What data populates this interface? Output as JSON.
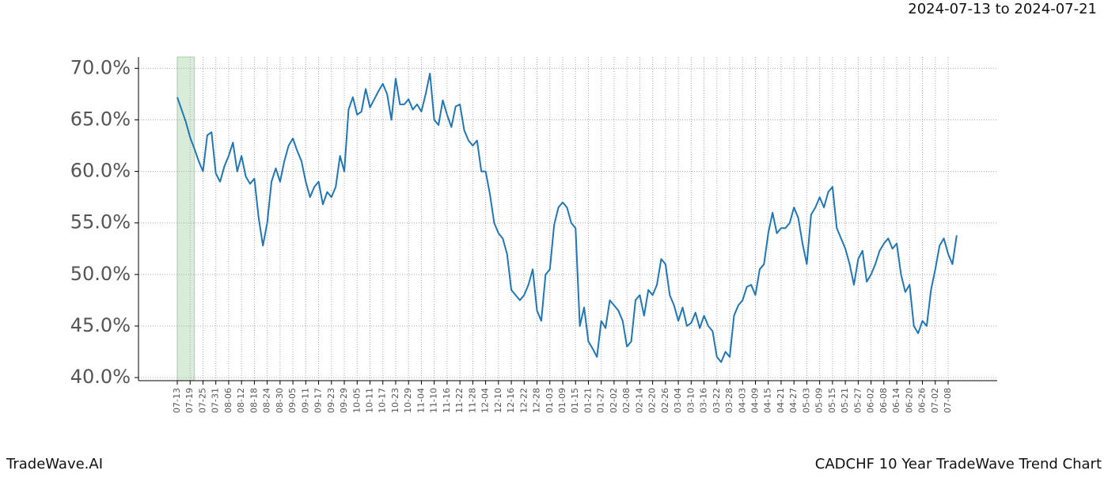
{
  "chart_data": {
    "type": "line",
    "title": "2024-07-13 to 2024-07-21",
    "footer_left": "TradeWave.AI",
    "footer_right": "CADCHF 10 Year TradeWave Trend Chart",
    "x": [
      "07-13",
      null,
      null,
      "07-19",
      null,
      null,
      "07-25",
      null,
      null,
      "07-31",
      null,
      null,
      "08-06",
      null,
      null,
      "08-12",
      null,
      null,
      "08-18",
      null,
      null,
      "08-24",
      null,
      null,
      "08-30",
      null,
      null,
      "09-05",
      null,
      null,
      "09-11",
      null,
      null,
      "09-17",
      null,
      null,
      "09-23",
      null,
      null,
      "09-29",
      null,
      null,
      "10-05",
      null,
      null,
      "10-11",
      null,
      null,
      "10-17",
      null,
      null,
      "10-23",
      null,
      null,
      "10-29",
      null,
      null,
      "11-04",
      null,
      null,
      "11-10",
      null,
      null,
      "11-16",
      null,
      null,
      "11-22",
      null,
      null,
      "11-28",
      null,
      null,
      "12-04",
      null,
      null,
      "12-10",
      null,
      null,
      "12-16",
      null,
      null,
      "12-22",
      null,
      null,
      "12-28",
      null,
      null,
      "01-03",
      null,
      null,
      "01-09",
      null,
      null,
      "01-15",
      null,
      null,
      "01-21",
      null,
      null,
      "01-27",
      null,
      null,
      "02-02",
      null,
      null,
      "02-08",
      null,
      null,
      "02-14",
      null,
      null,
      "02-20",
      null,
      null,
      "02-26",
      null,
      null,
      "03-04",
      null,
      null,
      "03-10",
      null,
      null,
      "03-16",
      null,
      null,
      "03-22",
      null,
      null,
      "03-28",
      null,
      null,
      "04-03",
      null,
      null,
      "04-09",
      null,
      null,
      "04-15",
      null,
      null,
      "04-21",
      null,
      null,
      "04-27",
      null,
      null,
      "05-03",
      null,
      null,
      "05-09",
      null,
      null,
      "05-15",
      null,
      null,
      "05-21",
      null,
      null,
      "05-27",
      null,
      null,
      "06-02",
      null,
      null,
      "06-08",
      null,
      null,
      "06-14",
      null,
      null,
      "06-20",
      null,
      null,
      "06-26",
      null,
      null,
      "07-02",
      null,
      null,
      "07-08",
      null,
      null
    ],
    "values": [
      67.2,
      66.0,
      64.8,
      63.3,
      62.2,
      61.0,
      60.0,
      63.5,
      63.8,
      59.8,
      59.0,
      60.5,
      61.5,
      62.8,
      60.0,
      61.5,
      59.5,
      58.8,
      59.3,
      55.5,
      52.8,
      55.0,
      59.0,
      60.3,
      59.0,
      61.0,
      62.5,
      63.2,
      62.0,
      61.0,
      59.0,
      57.5,
      58.5,
      59.0,
      56.8,
      58.0,
      57.5,
      58.5,
      61.5,
      60.0,
      66.0,
      67.2,
      65.5,
      65.8,
      68.0,
      66.2,
      67.0,
      67.8,
      68.5,
      67.5,
      65.0,
      69.0,
      66.5,
      66.5,
      67.0,
      66.0,
      66.5,
      65.8,
      67.5,
      69.5,
      65.0,
      64.5,
      66.9,
      65.5,
      64.3,
      66.3,
      66.5,
      64.0,
      63.0,
      62.5,
      63.0,
      60.0,
      60.0,
      57.8,
      55.0,
      54.0,
      53.5,
      52.0,
      48.5,
      48.0,
      47.5,
      48.0,
      49.0,
      50.5,
      46.5,
      45.5,
      50.0,
      50.5,
      54.8,
      56.5,
      57.0,
      56.5,
      55.0,
      54.5,
      45.0,
      46.8,
      43.5,
      42.8,
      42.0,
      45.5,
      44.8,
      47.5,
      47.0,
      46.5,
      45.5,
      43.0,
      43.5,
      47.5,
      48.0,
      46.0,
      48.5,
      48.0,
      49.0,
      51.5,
      51.0,
      48.0,
      47.0,
      45.5,
      46.8,
      45.0,
      45.3,
      46.3,
      44.8,
      46.0,
      45.0,
      44.5,
      42.0,
      41.5,
      42.5,
      42.0,
      46.0,
      47.0,
      47.5,
      48.8,
      49.0,
      48.0,
      50.5,
      51.0,
      54.0,
      56.0,
      54.0,
      54.5,
      54.5,
      55.0,
      56.5,
      55.5,
      53.0,
      51.0,
      55.8,
      56.5,
      57.5,
      56.5,
      58.0,
      58.5,
      54.5,
      53.5,
      52.5,
      51.0,
      49.0,
      51.5,
      52.3,
      49.3,
      50.0,
      51.0,
      52.3,
      53.0,
      53.5,
      52.5,
      53.0,
      50.0,
      48.3,
      49.0,
      45.0,
      44.3,
      45.5,
      45.0,
      48.5,
      50.5,
      52.8,
      53.5,
      52.0,
      51.0,
      53.8
    ],
    "color": "#1f77b4",
    "highlight": [
      0,
      4
    ],
    "highlight_color": "#d9ecd9",
    "ylim": [
      39.7,
      71.1
    ],
    "yticks": [
      {
        "value": 40,
        "label": "40.0%"
      },
      {
        "value": 45,
        "label": "45.0%"
      },
      {
        "value": 50,
        "label": "50.0%"
      },
      {
        "value": 55,
        "label": "55.0%"
      },
      {
        "value": 60,
        "label": "60.0%"
      },
      {
        "value": 65,
        "label": "65.0%"
      },
      {
        "value": 70,
        "label": "70.0%"
      }
    ],
    "grid": true
  }
}
